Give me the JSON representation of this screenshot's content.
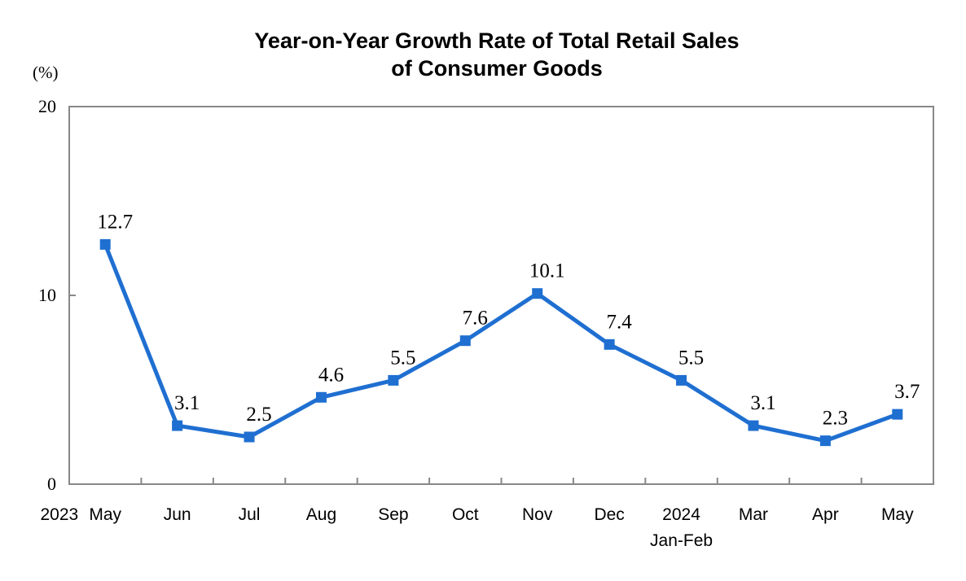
{
  "chart_data": {
    "type": "line",
    "title_line1": "Year-on-Year Growth Rate of Total Retail Sales",
    "title_line2": "of Consumer Goods",
    "ylabel": "(%)",
    "ylim": [
      0,
      20
    ],
    "yticks": [
      "0",
      "10",
      "20"
    ],
    "grid": false,
    "color": "#1f6fd1",
    "year_labels": [
      {
        "index": 0,
        "text": "2023"
      }
    ],
    "categories": [
      "May",
      "Jun",
      "Jul",
      "Aug",
      "Sep",
      "Oct",
      "Nov",
      "Dec",
      "2024",
      "Mar",
      "Apr",
      "May"
    ],
    "category_sublabels": {
      "8": "Jan-Feb"
    },
    "values": [
      12.7,
      3.1,
      2.5,
      4.6,
      5.5,
      7.6,
      10.1,
      7.4,
      5.5,
      3.1,
      2.3,
      3.7
    ],
    "data_labels": [
      "12.7",
      "3.1",
      "2.5",
      "4.6",
      "5.5",
      "7.6",
      "10.1",
      "7.4",
      "5.5",
      "3.1",
      "2.3",
      "3.7"
    ]
  }
}
